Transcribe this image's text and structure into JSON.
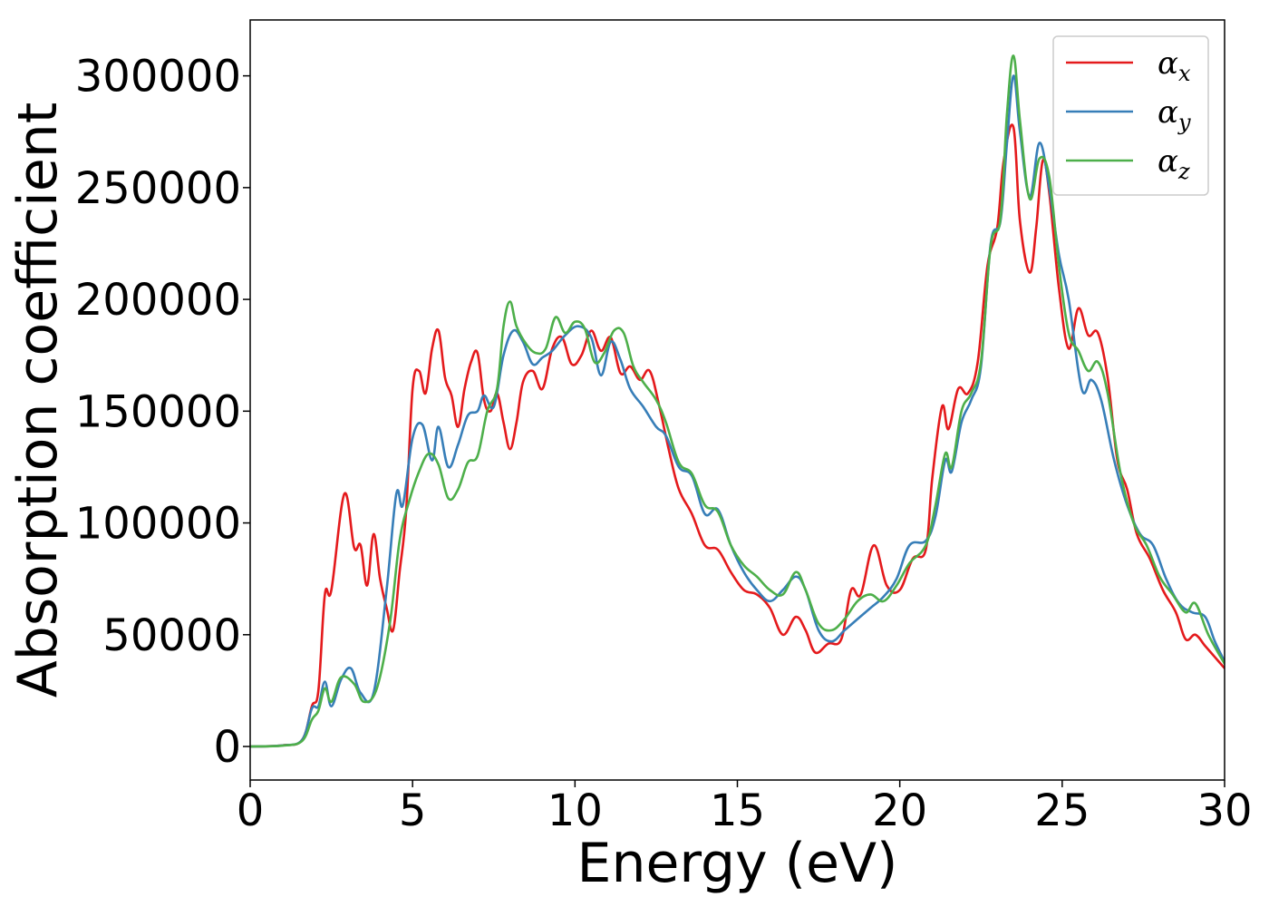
{
  "chart_data": {
    "type": "line",
    "title": "",
    "xlabel": "Energy (eV)",
    "ylabel": "Absorption coefficient",
    "xlim": [
      0,
      30
    ],
    "ylim": [
      -15000,
      325000
    ],
    "x_ticks": [
      0,
      5,
      10,
      15,
      20,
      25,
      30
    ],
    "y_ticks": [
      0,
      50000,
      100000,
      150000,
      200000,
      250000,
      300000
    ],
    "x_tick_labels": [
      "0",
      "5",
      "10",
      "15",
      "20",
      "25",
      "30"
    ],
    "y_tick_labels": [
      "0",
      "50000",
      "100000",
      "150000",
      "200000",
      "250000",
      "300000"
    ],
    "grid": false,
    "legend_position": "top-right",
    "series": [
      {
        "name": "α_x",
        "label_main": "α",
        "label_sub": "x",
        "color": "#e41a1c",
        "points": [
          [
            0,
            0
          ],
          [
            1,
            500
          ],
          [
            1.6,
            3000
          ],
          [
            1.9,
            18000
          ],
          [
            2.1,
            25000
          ],
          [
            2.3,
            68000
          ],
          [
            2.5,
            70000
          ],
          [
            2.9,
            113000
          ],
          [
            3.2,
            89000
          ],
          [
            3.4,
            90000
          ],
          [
            3.6,
            72000
          ],
          [
            3.8,
            95000
          ],
          [
            4.0,
            75000
          ],
          [
            4.2,
            62000
          ],
          [
            4.4,
            52000
          ],
          [
            4.6,
            78000
          ],
          [
            4.8,
            105000
          ],
          [
            5.0,
            160000
          ],
          [
            5.2,
            168000
          ],
          [
            5.4,
            158000
          ],
          [
            5.6,
            178000
          ],
          [
            5.8,
            186000
          ],
          [
            6.0,
            165000
          ],
          [
            6.2,
            157000
          ],
          [
            6.4,
            143000
          ],
          [
            6.6,
            160000
          ],
          [
            6.8,
            172000
          ],
          [
            7.0,
            176000
          ],
          [
            7.2,
            155000
          ],
          [
            7.4,
            150000
          ],
          [
            7.6,
            158000
          ],
          [
            7.8,
            145000
          ],
          [
            8.0,
            133000
          ],
          [
            8.2,
            145000
          ],
          [
            8.4,
            163000
          ],
          [
            8.7,
            168000
          ],
          [
            9.0,
            160000
          ],
          [
            9.3,
            178000
          ],
          [
            9.6,
            183000
          ],
          [
            9.9,
            171000
          ],
          [
            10.2,
            175000
          ],
          [
            10.5,
            186000
          ],
          [
            10.8,
            177000
          ],
          [
            11.1,
            183000
          ],
          [
            11.4,
            167000
          ],
          [
            11.7,
            170000
          ],
          [
            12.0,
            164000
          ],
          [
            12.3,
            168000
          ],
          [
            12.6,
            152000
          ],
          [
            12.9,
            132000
          ],
          [
            13.2,
            115000
          ],
          [
            13.6,
            104000
          ],
          [
            14.0,
            90000
          ],
          [
            14.4,
            88000
          ],
          [
            14.8,
            78000
          ],
          [
            15.2,
            70000
          ],
          [
            15.6,
            68000
          ],
          [
            16.0,
            62000
          ],
          [
            16.4,
            50000
          ],
          [
            16.8,
            58000
          ],
          [
            17.1,
            52000
          ],
          [
            17.4,
            42000
          ],
          [
            17.8,
            46000
          ],
          [
            18.2,
            48000
          ],
          [
            18.5,
            70000
          ],
          [
            18.8,
            68000
          ],
          [
            19.2,
            90000
          ],
          [
            19.6,
            72000
          ],
          [
            20.0,
            70000
          ],
          [
            20.4,
            84000
          ],
          [
            20.8,
            88000
          ],
          [
            21.0,
            120000
          ],
          [
            21.3,
            152000
          ],
          [
            21.5,
            142000
          ],
          [
            21.8,
            160000
          ],
          [
            22.1,
            158000
          ],
          [
            22.4,
            172000
          ],
          [
            22.7,
            215000
          ],
          [
            23.0,
            232000
          ],
          [
            23.2,
            262000
          ],
          [
            23.5,
            277000
          ],
          [
            23.7,
            235000
          ],
          [
            24.0,
            212000
          ],
          [
            24.2,
            232000
          ],
          [
            24.4,
            262000
          ],
          [
            24.6,
            248000
          ],
          [
            24.9,
            205000
          ],
          [
            25.2,
            178000
          ],
          [
            25.5,
            196000
          ],
          [
            25.8,
            184000
          ],
          [
            26.1,
            185000
          ],
          [
            26.4,
            165000
          ],
          [
            26.7,
            128000
          ],
          [
            27.0,
            115000
          ],
          [
            27.3,
            95000
          ],
          [
            27.7,
            84000
          ],
          [
            28.1,
            70000
          ],
          [
            28.5,
            60000
          ],
          [
            28.8,
            48000
          ],
          [
            29.1,
            50000
          ],
          [
            29.4,
            45000
          ],
          [
            29.7,
            40000
          ],
          [
            30.0,
            35000
          ]
        ]
      },
      {
        "name": "α_y",
        "label_main": "α",
        "label_sub": "y",
        "color": "#377eb8",
        "points": [
          [
            0,
            0
          ],
          [
            1,
            500
          ],
          [
            1.6,
            3000
          ],
          [
            1.9,
            17000
          ],
          [
            2.1,
            18000
          ],
          [
            2.3,
            29000
          ],
          [
            2.5,
            18000
          ],
          [
            2.8,
            30000
          ],
          [
            3.1,
            35000
          ],
          [
            3.4,
            24000
          ],
          [
            3.8,
            24000
          ],
          [
            4.2,
            70000
          ],
          [
            4.5,
            113000
          ],
          [
            4.7,
            108000
          ],
          [
            5.0,
            138000
          ],
          [
            5.3,
            144000
          ],
          [
            5.6,
            128000
          ],
          [
            5.8,
            143000
          ],
          [
            6.1,
            125000
          ],
          [
            6.4,
            135000
          ],
          [
            6.7,
            148000
          ],
          [
            7.0,
            150000
          ],
          [
            7.2,
            157000
          ],
          [
            7.5,
            152000
          ],
          [
            7.8,
            175000
          ],
          [
            8.1,
            186000
          ],
          [
            8.4,
            181000
          ],
          [
            8.7,
            171000
          ],
          [
            9.0,
            174000
          ],
          [
            9.3,
            177000
          ],
          [
            9.7,
            184000
          ],
          [
            10.1,
            188000
          ],
          [
            10.5,
            183000
          ],
          [
            10.8,
            166000
          ],
          [
            11.1,
            181000
          ],
          [
            11.4,
            173000
          ],
          [
            11.7,
            160000
          ],
          [
            12.1,
            152000
          ],
          [
            12.5,
            143000
          ],
          [
            12.8,
            139000
          ],
          [
            13.2,
            125000
          ],
          [
            13.6,
            121000
          ],
          [
            14.0,
            104000
          ],
          [
            14.4,
            106000
          ],
          [
            14.8,
            90000
          ],
          [
            15.2,
            78000
          ],
          [
            15.6,
            70000
          ],
          [
            16.0,
            65000
          ],
          [
            16.4,
            70000
          ],
          [
            16.8,
            76000
          ],
          [
            17.1,
            70000
          ],
          [
            17.5,
            52000
          ],
          [
            17.9,
            47000
          ],
          [
            18.3,
            52000
          ],
          [
            18.7,
            57000
          ],
          [
            19.1,
            62000
          ],
          [
            19.5,
            67000
          ],
          [
            19.9,
            75000
          ],
          [
            20.3,
            90000
          ],
          [
            20.8,
            92000
          ],
          [
            21.1,
            103000
          ],
          [
            21.4,
            128000
          ],
          [
            21.6,
            123000
          ],
          [
            21.9,
            145000
          ],
          [
            22.2,
            155000
          ],
          [
            22.5,
            170000
          ],
          [
            22.8,
            225000
          ],
          [
            23.1,
            235000
          ],
          [
            23.3,
            270000
          ],
          [
            23.5,
            300000
          ],
          [
            23.7,
            275000
          ],
          [
            24.0,
            246000
          ],
          [
            24.3,
            270000
          ],
          [
            24.6,
            250000
          ],
          [
            24.9,
            220000
          ],
          [
            25.2,
            200000
          ],
          [
            25.6,
            160000
          ],
          [
            25.9,
            164000
          ],
          [
            26.2,
            155000
          ],
          [
            26.6,
            128000
          ],
          [
            27.0,
            108000
          ],
          [
            27.4,
            95000
          ],
          [
            27.8,
            90000
          ],
          [
            28.2,
            75000
          ],
          [
            28.6,
            64000
          ],
          [
            29.0,
            60000
          ],
          [
            29.4,
            58000
          ],
          [
            29.7,
            47000
          ],
          [
            30.0,
            38000
          ]
        ]
      },
      {
        "name": "α_z",
        "label_main": "α",
        "label_sub": "z",
        "color": "#4daf4a",
        "points": [
          [
            0,
            0
          ],
          [
            1,
            400
          ],
          [
            1.6,
            2500
          ],
          [
            1.9,
            12000
          ],
          [
            2.1,
            16000
          ],
          [
            2.3,
            26000
          ],
          [
            2.5,
            20000
          ],
          [
            2.8,
            31000
          ],
          [
            3.2,
            28000
          ],
          [
            3.5,
            20000
          ],
          [
            3.9,
            26000
          ],
          [
            4.3,
            55000
          ],
          [
            4.6,
            92000
          ],
          [
            4.9,
            110000
          ],
          [
            5.2,
            123000
          ],
          [
            5.5,
            131000
          ],
          [
            5.8,
            126000
          ],
          [
            6.1,
            111000
          ],
          [
            6.4,
            115000
          ],
          [
            6.7,
            127000
          ],
          [
            7.0,
            130000
          ],
          [
            7.3,
            150000
          ],
          [
            7.6,
            160000
          ],
          [
            7.8,
            188000
          ],
          [
            8.0,
            199000
          ],
          [
            8.2,
            188000
          ],
          [
            8.5,
            180000
          ],
          [
            8.8,
            176000
          ],
          [
            9.1,
            178000
          ],
          [
            9.4,
            192000
          ],
          [
            9.7,
            185000
          ],
          [
            10.0,
            190000
          ],
          [
            10.3,
            187000
          ],
          [
            10.6,
            172000
          ],
          [
            10.9,
            176000
          ],
          [
            11.2,
            186000
          ],
          [
            11.5,
            185000
          ],
          [
            11.8,
            170000
          ],
          [
            12.1,
            163000
          ],
          [
            12.5,
            155000
          ],
          [
            12.8,
            145000
          ],
          [
            13.2,
            127000
          ],
          [
            13.6,
            122000
          ],
          [
            14.0,
            108000
          ],
          [
            14.4,
            105000
          ],
          [
            14.8,
            90000
          ],
          [
            15.2,
            81000
          ],
          [
            15.6,
            76000
          ],
          [
            16.0,
            70000
          ],
          [
            16.4,
            68000
          ],
          [
            16.8,
            78000
          ],
          [
            17.1,
            70000
          ],
          [
            17.5,
            55000
          ],
          [
            17.9,
            52000
          ],
          [
            18.3,
            57000
          ],
          [
            18.7,
            65000
          ],
          [
            19.1,
            68000
          ],
          [
            19.5,
            65000
          ],
          [
            19.9,
            72000
          ],
          [
            20.3,
            82000
          ],
          [
            20.8,
            90000
          ],
          [
            21.1,
            108000
          ],
          [
            21.4,
            131000
          ],
          [
            21.6,
            125000
          ],
          [
            21.9,
            150000
          ],
          [
            22.2,
            158000
          ],
          [
            22.5,
            172000
          ],
          [
            22.8,
            224000
          ],
          [
            23.1,
            236000
          ],
          [
            23.3,
            283000
          ],
          [
            23.5,
            309000
          ],
          [
            23.7,
            280000
          ],
          [
            24.0,
            245000
          ],
          [
            24.3,
            263000
          ],
          [
            24.6,
            255000
          ],
          [
            24.9,
            215000
          ],
          [
            25.2,
            185000
          ],
          [
            25.5,
            177000
          ],
          [
            25.8,
            168000
          ],
          [
            26.1,
            172000
          ],
          [
            26.4,
            158000
          ],
          [
            26.8,
            122000
          ],
          [
            27.2,
            100000
          ],
          [
            27.6,
            90000
          ],
          [
            28.0,
            76000
          ],
          [
            28.4,
            68000
          ],
          [
            28.8,
            60000
          ],
          [
            29.1,
            64000
          ],
          [
            29.5,
            50000
          ],
          [
            30.0,
            37000
          ]
        ]
      }
    ]
  }
}
